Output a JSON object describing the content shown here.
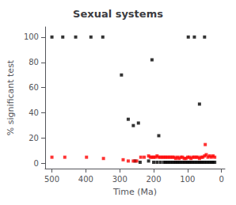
{
  "chart_data": {
    "type": "scatter",
    "title": "Sexual systems",
    "xlabel": "Time (Ma)",
    "ylabel": "% significant test",
    "xlim": [
      520,
      -10
    ],
    "ylim": [
      -4,
      108
    ],
    "xticks": [
      500,
      400,
      300,
      200,
      100,
      0
    ],
    "yticks": [
      0,
      20,
      40,
      60,
      80,
      100
    ],
    "grid": false,
    "marker": "square",
    "series": [
      {
        "color": "black",
        "x": [
          500,
          468,
          430,
          385,
          350,
          295,
          275,
          260,
          245,
          205,
          185,
          98,
          80,
          65,
          50,
          255,
          240,
          215,
          200,
          190,
          180,
          170,
          165,
          160,
          155,
          150,
          145,
          140,
          135,
          130,
          125,
          120,
          115,
          110,
          105,
          100,
          95,
          90,
          85,
          80,
          75,
          70,
          65,
          60,
          55,
          50,
          45,
          40,
          35,
          30,
          25,
          20
        ],
        "values": [
          100,
          100,
          100,
          100,
          100,
          70,
          35,
          30,
          32,
          82,
          22,
          100,
          100,
          47,
          100,
          2,
          1,
          2,
          1,
          1,
          1,
          1,
          1,
          1,
          1,
          1,
          1,
          1,
          1,
          1,
          1,
          1,
          1,
          1,
          1,
          1,
          1,
          1,
          1,
          1,
          1,
          1,
          1,
          1,
          1,
          1,
          1,
          1,
          1,
          1,
          1,
          1
        ]
      },
      {
        "color": "red",
        "x": [
          500,
          462,
          398,
          348,
          290,
          275,
          260,
          250,
          238,
          228,
          215,
          210,
          205,
          200,
          195,
          190,
          185,
          180,
          175,
          170,
          165,
          160,
          155,
          150,
          145,
          140,
          135,
          130,
          125,
          120,
          115,
          110,
          105,
          100,
          95,
          90,
          85,
          80,
          75,
          70,
          65,
          60,
          55,
          50,
          45,
          40,
          35,
          30,
          25,
          20,
          48
        ],
        "values": [
          5,
          5,
          5,
          4,
          3,
          2,
          2,
          2,
          5,
          5,
          6,
          5,
          5,
          5,
          5,
          6,
          5,
          5,
          5,
          5,
          5,
          5,
          5,
          5,
          5,
          5,
          4,
          5,
          4,
          5,
          5,
          4,
          4,
          5,
          5,
          4,
          5,
          5,
          5,
          5,
          4,
          5,
          5,
          6,
          7,
          5,
          6,
          5,
          6,
          5,
          15
        ]
      }
    ]
  }
}
